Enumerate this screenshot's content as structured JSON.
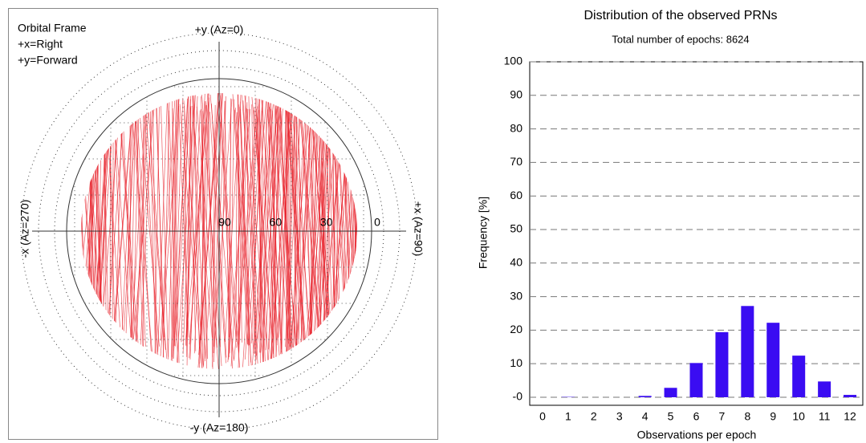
{
  "chart_data": [
    {
      "type": "skyplot",
      "annotations": [
        "Orbital Frame",
        "+x=Right",
        "+y=Forward"
      ],
      "top_label": "+y (Az=0)",
      "bottom_label": "-y (Az=180)",
      "left_label": "-x (Az=270)",
      "right_label": "+x (Az=90)",
      "rticks": [
        90,
        60,
        30,
        0
      ],
      "rlim": [
        90,
        0
      ],
      "color": "#e8202a"
    },
    {
      "type": "bar",
      "title": "Distribution of the observed PRNs",
      "subtitle": "Total number of epochs: 8624",
      "xlabel": "Observations per epoch",
      "ylabel": "Frequency [%]",
      "categories": [
        "0",
        "1",
        "2",
        "3",
        "4",
        "5",
        "6",
        "7",
        "8",
        "9",
        "10",
        "11",
        "12"
      ],
      "values": [
        0,
        0.1,
        0,
        0,
        0.4,
        2.8,
        10.2,
        19.4,
        27.2,
        22.2,
        12.4,
        4.7,
        0.7
      ],
      "color": "#3a0cf2",
      "ylim": [
        -2.4,
        100
      ],
      "yticks": [
        {
          "value": 0,
          "label": "-0"
        },
        10,
        20,
        30,
        40,
        50,
        60,
        70,
        80,
        90,
        100
      ],
      "grid": true
    }
  ]
}
